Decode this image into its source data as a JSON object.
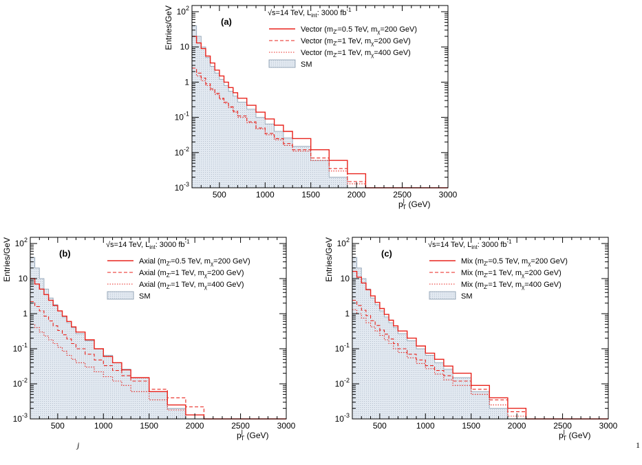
{
  "chart_data": [
    {
      "type": "step-histogram",
      "panel_label": "(a)",
      "info": "√s=14 TeV, L_int: 3000 fb⁻¹",
      "info_parts": {
        "sqrt_s": "√s=14 TeV, L",
        "int_sub": "int",
        "lumi": ": 3000 fb",
        "lumi_sup": "-1"
      },
      "ylabel": "Entries/GeV",
      "xlabel": "p_T^j (GeV)",
      "xlim": [
        200,
        3000
      ],
      "ylim": [
        0.001,
        150
      ],
      "yscale": "log",
      "xticks": [
        500,
        1000,
        1500,
        2000,
        2500,
        3000
      ],
      "yticks": [
        {
          "value": 100,
          "base": "10",
          "exp": "2"
        },
        {
          "value": 10,
          "base": "10",
          "exp": ""
        },
        {
          "value": 1,
          "base": "1",
          "exp": ""
        },
        {
          "value": 0.1,
          "base": "10",
          "exp": "-1"
        },
        {
          "value": 0.01,
          "base": "10",
          "exp": "-2"
        },
        {
          "value": 0.001,
          "base": "10",
          "exp": "-3"
        }
      ],
      "bin_edges": [
        200,
        250,
        300,
        350,
        400,
        450,
        500,
        550,
        600,
        650,
        700,
        800,
        900,
        1000,
        1100,
        1200,
        1300,
        1500,
        1700,
        1900,
        2100,
        2300,
        2500,
        2700,
        2900,
        3000
      ],
      "legend": [
        {
          "label": "Vector (m_Z=0.5 TeV, m_χ=200 GeV)",
          "prefix": "Vector (m",
          "sub1": "Z'",
          "mid": "=0.5 TeV, m",
          "sub2": "χ",
          "suffix": "=200 GeV)",
          "style": "solid"
        },
        {
          "label": "Vector (m_Z=1 TeV, m_χ=200 GeV)",
          "prefix": "Vector (m",
          "sub1": "Z'",
          "mid": "=1 TeV, m",
          "sub2": "χ",
          "suffix": "=200 GeV)",
          "style": "dashed"
        },
        {
          "label": "Vector (m_Z=1 TeV, m_χ=400 GeV)",
          "prefix": "Vector (m",
          "sub1": "Z'",
          "mid": "=1 TeV, m",
          "sub2": "χ",
          "suffix": "=400 GeV)",
          "style": "dotted"
        },
        {
          "label": "SM",
          "prefix": "SM",
          "sub1": "",
          "mid": "",
          "sub2": "",
          "suffix": "",
          "style": "fill"
        }
      ],
      "series": [
        {
          "name": "Vector (m_Z=0.5 TeV, m_χ=200 GeV)",
          "style": "solid",
          "values": [
            20,
            13,
            9,
            5.5,
            3.5,
            2.2,
            1.5,
            1.0,
            0.7,
            0.5,
            0.35,
            0.22,
            0.14,
            0.09,
            0.06,
            0.04,
            0.025,
            0.012,
            0.006,
            0.0025,
            0.001,
            0.001,
            0.001,
            0.001,
            0.001
          ]
        },
        {
          "name": "Vector (m_Z=1 TeV, m_χ=200 GeV)",
          "style": "dashed",
          "values": [
            2.5,
            1.8,
            1.3,
            0.9,
            0.65,
            0.48,
            0.35,
            0.27,
            0.2,
            0.15,
            0.11,
            0.075,
            0.05,
            0.035,
            0.025,
            0.018,
            0.012,
            0.007,
            0.0035,
            0.0015,
            0.001,
            0.001,
            0.001,
            0.001,
            0.001
          ]
        },
        {
          "name": "Vector (m_Z=1 TeV, m_χ=400 GeV)",
          "style": "dotted",
          "values": [
            2.0,
            1.5,
            1.1,
            0.8,
            0.6,
            0.45,
            0.33,
            0.25,
            0.19,
            0.14,
            0.1,
            0.07,
            0.047,
            0.032,
            0.023,
            0.016,
            0.011,
            0.006,
            0.003,
            0.0013,
            0.001,
            0.001,
            0.001,
            0.001,
            0.001
          ]
        },
        {
          "name": "SM",
          "style": "fill",
          "values": [
            40,
            20,
            10,
            5,
            2.8,
            1.8,
            1.2,
            0.8,
            0.55,
            0.4,
            0.27,
            0.17,
            0.1,
            0.065,
            0.04,
            0.026,
            0.015,
            0.006,
            0.002,
            0.001,
            0.001,
            0.001,
            0.001,
            0.001,
            0.001
          ]
        }
      ]
    },
    {
      "type": "step-histogram",
      "panel_label": "(b)",
      "info": "√s=14 TeV, L_int: 3000 fb⁻¹",
      "info_parts": {
        "sqrt_s": "√s=14 TeV, L",
        "int_sub": "int",
        "lumi": ": 3000 fb",
        "lumi_sup": "-1"
      },
      "ylabel": "Entries/GeV",
      "xlabel": "p_T^j (GeV)",
      "xlim": [
        200,
        3000
      ],
      "ylim": [
        0.001,
        150
      ],
      "yscale": "log",
      "xticks": [
        500,
        1000,
        1500,
        2000,
        2500,
        3000
      ],
      "yticks": [
        {
          "value": 100,
          "base": "10",
          "exp": "2"
        },
        {
          "value": 10,
          "base": "10",
          "exp": ""
        },
        {
          "value": 1,
          "base": "1",
          "exp": ""
        },
        {
          "value": 0.1,
          "base": "10",
          "exp": "-1"
        },
        {
          "value": 0.01,
          "base": "10",
          "exp": "-2"
        },
        {
          "value": 0.001,
          "base": "10",
          "exp": "-3"
        }
      ],
      "bin_edges": [
        200,
        250,
        300,
        350,
        400,
        450,
        500,
        550,
        600,
        650,
        700,
        800,
        900,
        1000,
        1100,
        1200,
        1300,
        1500,
        1700,
        1900,
        2100,
        2300,
        2500,
        2700,
        2900,
        3000
      ],
      "legend": [
        {
          "label": "Axial (m_Z=0.5 TeV, m_χ=200 GeV)",
          "prefix": "Axial (m",
          "sub1": "Z'",
          "mid": "=0.5 TeV, m",
          "sub2": "χ",
          "suffix": "=200 GeV)",
          "style": "solid"
        },
        {
          "label": "Axial (m_Z=1 TeV, m_χ=200 GeV)",
          "prefix": "Axial (m",
          "sub1": "Z'",
          "mid": "=1 TeV, m",
          "sub2": "χ",
          "suffix": "=200 GeV)",
          "style": "dashed"
        },
        {
          "label": "Axial (m_Z=1 TeV, m_χ=400 GeV)",
          "prefix": "Axial (m",
          "sub1": "Z'",
          "mid": "=1 TeV, m",
          "sub2": "χ",
          "suffix": "=400 GeV)",
          "style": "dotted"
        },
        {
          "label": "SM",
          "prefix": "SM",
          "sub1": "",
          "mid": "",
          "sub2": "",
          "suffix": "",
          "style": "fill"
        }
      ],
      "series": [
        {
          "name": "Axial (m_Z=0.5 TeV, m_χ=200 GeV)",
          "style": "solid",
          "values": [
            10,
            7,
            5,
            3.5,
            2.4,
            1.7,
            1.2,
            0.85,
            0.6,
            0.42,
            0.3,
            0.18,
            0.1,
            0.06,
            0.04,
            0.025,
            0.015,
            0.006,
            0.0025,
            0.0013,
            0.001,
            0.001,
            0.001,
            0.001,
            0.001
          ]
        },
        {
          "name": "Axial (m_Z=1 TeV, m_χ=200 GeV)",
          "style": "dashed",
          "values": [
            2.2,
            1.6,
            1.2,
            0.85,
            0.62,
            0.45,
            0.33,
            0.25,
            0.19,
            0.14,
            0.1,
            0.07,
            0.048,
            0.033,
            0.024,
            0.017,
            0.012,
            0.007,
            0.004,
            0.0022,
            0.001,
            0.001,
            0.001,
            0.001,
            0.001
          ]
        },
        {
          "name": "Axial (m_Z=1 TeV, m_χ=400 GeV)",
          "style": "dotted",
          "values": [
            0.5,
            0.4,
            0.3,
            0.23,
            0.18,
            0.14,
            0.11,
            0.085,
            0.065,
            0.05,
            0.04,
            0.03,
            0.022,
            0.016,
            0.012,
            0.009,
            0.006,
            0.0035,
            0.0018,
            0.001,
            0.001,
            0.001,
            0.001,
            0.001,
            0.001
          ]
        },
        {
          "name": "SM",
          "style": "fill",
          "values": [
            40,
            20,
            10,
            5,
            2.8,
            1.8,
            1.2,
            0.8,
            0.55,
            0.4,
            0.27,
            0.17,
            0.1,
            0.065,
            0.04,
            0.026,
            0.015,
            0.006,
            0.002,
            0.001,
            0.001,
            0.001,
            0.001,
            0.001,
            0.001
          ]
        }
      ]
    },
    {
      "type": "step-histogram",
      "panel_label": "(c)",
      "info": "√s=14 TeV, L_int: 3000 fb⁻¹",
      "info_parts": {
        "sqrt_s": "√s=14 TeV, L",
        "int_sub": "int",
        "lumi": ": 3000 fb",
        "lumi_sup": "-1"
      },
      "ylabel": "Entries/GeV",
      "xlabel": "p_T^j (GeV)",
      "xlim": [
        200,
        3000
      ],
      "ylim": [
        0.001,
        150
      ],
      "yscale": "log",
      "xticks": [
        500,
        1000,
        1500,
        2000,
        2500,
        3000
      ],
      "yticks": [
        {
          "value": 100,
          "base": "10",
          "exp": "2"
        },
        {
          "value": 10,
          "base": "10",
          "exp": ""
        },
        {
          "value": 1,
          "base": "1",
          "exp": ""
        },
        {
          "value": 0.1,
          "base": "10",
          "exp": "-1"
        },
        {
          "value": 0.01,
          "base": "10",
          "exp": "-2"
        },
        {
          "value": 0.001,
          "base": "10",
          "exp": "-3"
        }
      ],
      "bin_edges": [
        200,
        250,
        300,
        350,
        400,
        450,
        500,
        550,
        600,
        650,
        700,
        800,
        900,
        1000,
        1100,
        1200,
        1300,
        1500,
        1700,
        1900,
        2100,
        2300,
        2500,
        2700,
        2900,
        3000
      ],
      "legend": [
        {
          "label": "Mix (m_Z=0.5 TeV, m_χ=200 GeV)",
          "prefix": "Mix (m",
          "sub1": "Z'",
          "mid": "=0.5 TeV, m",
          "sub2": "χ",
          "suffix": "=200 GeV)",
          "style": "solid"
        },
        {
          "label": "Mix (m_Z=1 TeV, m_χ=200 GeV)",
          "prefix": "Mix (m",
          "sub1": "Z'",
          "mid": "=1 TeV, m",
          "sub2": "χ",
          "suffix": "=200 GeV)",
          "style": "dashed"
        },
        {
          "label": "Mix (m_Z=1 TeV, m_χ=400 GeV)",
          "prefix": "Mix (m",
          "sub1": "Z'",
          "mid": "=1 TeV, m",
          "sub2": "χ",
          "suffix": "=400 GeV)",
          "style": "dotted"
        },
        {
          "label": "SM",
          "prefix": "SM",
          "sub1": "",
          "mid": "",
          "sub2": "",
          "suffix": "",
          "style": "fill"
        }
      ],
      "series": [
        {
          "name": "Mix (m_Z=0.5 TeV, m_χ=200 GeV)",
          "style": "solid",
          "values": [
            16,
            11,
            7.5,
            4.8,
            3.2,
            2.1,
            1.4,
            0.95,
            0.65,
            0.45,
            0.32,
            0.2,
            0.12,
            0.075,
            0.05,
            0.032,
            0.02,
            0.009,
            0.004,
            0.002,
            0.001,
            0.001,
            0.001,
            0.001,
            0.001
          ]
        },
        {
          "name": "Mix (m_Z=1 TeV, m_χ=200 GeV)",
          "style": "dashed",
          "values": [
            2.4,
            1.7,
            1.25,
            0.88,
            0.63,
            0.46,
            0.34,
            0.26,
            0.19,
            0.14,
            0.1,
            0.07,
            0.048,
            0.033,
            0.024,
            0.017,
            0.012,
            0.007,
            0.0035,
            0.0016,
            0.001,
            0.001,
            0.001,
            0.001,
            0.001
          ]
        },
        {
          "name": "Mix (m_Z=1 TeV, m_χ=400 GeV)",
          "style": "dotted",
          "values": [
            1.3,
            1.0,
            0.75,
            0.55,
            0.42,
            0.32,
            0.24,
            0.18,
            0.14,
            0.1,
            0.078,
            0.055,
            0.038,
            0.027,
            0.019,
            0.013,
            0.009,
            0.005,
            0.0025,
            0.0012,
            0.001,
            0.001,
            0.001,
            0.001,
            0.001
          ]
        },
        {
          "name": "SM",
          "style": "fill",
          "values": [
            40,
            20,
            10,
            5,
            2.8,
            1.8,
            1.2,
            0.8,
            0.55,
            0.4,
            0.27,
            0.17,
            0.1,
            0.065,
            0.04,
            0.026,
            0.015,
            0.006,
            0.002,
            0.001,
            0.001,
            0.001,
            0.001,
            0.001,
            0.001
          ]
        }
      ]
    }
  ],
  "colors": {
    "signal": "#e8221b",
    "sm_fill": "#dfe6ee",
    "sm_line": "#9aaabb"
  },
  "caption": {
    "fragment_1": "j",
    "fragment_2": "1"
  }
}
